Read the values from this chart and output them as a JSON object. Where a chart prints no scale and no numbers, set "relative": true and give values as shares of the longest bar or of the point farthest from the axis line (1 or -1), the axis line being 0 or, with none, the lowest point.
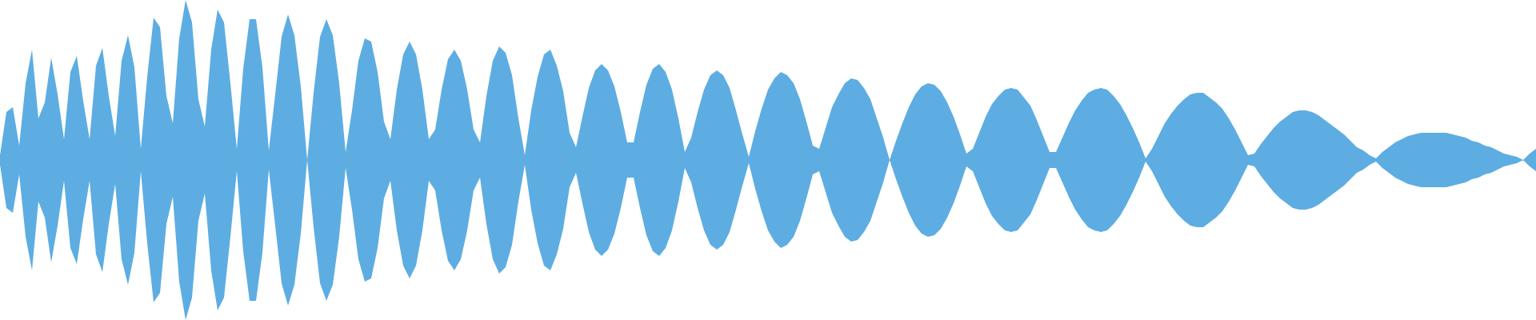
{
  "chart_data": {
    "type": "area",
    "relative": true,
    "categories": [
      null,
      null,
      null,
      null,
      null,
      null,
      null,
      null,
      null,
      null,
      null,
      null,
      null,
      null,
      null,
      null,
      null,
      null,
      null,
      null,
      null,
      null,
      null,
      null,
      null,
      null,
      null,
      null,
      null,
      null,
      null,
      null,
      null,
      null,
      null,
      null,
      null,
      null,
      null,
      null,
      null,
      null,
      null,
      null,
      null,
      null,
      null,
      null,
      null,
      null,
      null,
      null,
      null,
      null,
      null,
      null,
      null,
      null,
      null,
      null,
      null,
      null,
      null,
      null,
      null,
      null,
      null,
      null,
      null,
      null,
      null,
      null,
      null,
      null,
      null,
      null,
      null,
      null,
      null,
      null,
      null,
      null,
      null,
      null,
      null,
      null,
      null,
      null,
      null,
      null,
      null,
      null,
      null,
      null,
      null,
      null,
      null,
      null,
      null,
      null,
      null,
      null,
      null,
      null,
      null,
      null,
      null,
      null,
      null,
      null,
      null,
      null,
      null,
      null,
      null,
      null,
      null,
      null,
      null,
      null,
      null,
      null,
      null,
      null,
      null,
      null,
      null,
      null,
      null,
      null,
      null,
      null,
      null,
      null,
      null,
      null,
      null,
      null,
      null,
      null,
      null,
      null,
      null,
      null,
      null,
      null,
      null,
      null,
      null,
      null,
      null,
      null,
      null,
      null,
      null,
      null,
      null,
      null,
      null,
      null,
      null,
      null,
      null,
      null,
      null,
      null,
      null,
      null,
      null,
      null,
      null,
      null,
      null,
      null,
      null,
      null,
      null,
      null,
      null,
      null,
      null,
      null,
      null,
      null,
      null,
      null,
      null,
      null,
      null,
      null,
      null,
      null,
      null,
      null,
      null,
      null,
      null,
      null,
      null,
      null,
      null,
      null,
      null,
      null,
      null,
      null,
      null,
      null,
      null,
      null,
      null,
      null,
      null,
      null,
      null,
      null,
      null,
      null,
      null,
      null,
      null,
      null,
      null,
      null,
      null,
      null,
      null,
      null,
      null,
      null,
      null,
      null,
      null,
      null,
      null,
      null,
      null,
      null,
      null,
      null,
      null
    ],
    "series": [
      {
        "color": "#5dade2",
        "values": [
          0.03,
          0.3,
          0.33,
          0.09,
          0.48,
          0.69,
          0.26,
          0.36,
          0.64,
          0.41,
          0.13,
          0.55,
          0.65,
          0.37,
          0.13,
          0.59,
          0.7,
          0.4,
          0.15,
          0.62,
          0.78,
          0.58,
          0.07,
          0.52,
          0.89,
          0.83,
          0.4,
          0.23,
          0.76,
          1.0,
          0.86,
          0.38,
          0.21,
          0.69,
          0.94,
          0.86,
          0.48,
          0.07,
          0.57,
          0.88,
          0.88,
          0.58,
          0.06,
          0.41,
          0.77,
          0.91,
          0.78,
          0.46,
          0,
          0.42,
          0.77,
          0.88,
          0.78,
          0.48,
          0.05,
          0.31,
          0.62,
          0.76,
          0.74,
          0.55,
          0.24,
          0.13,
          0.44,
          0.66,
          0.74,
          0.66,
          0.44,
          0.13,
          0.19,
          0.44,
          0.63,
          0.69,
          0.62,
          0.44,
          0.19,
          0.11,
          0.4,
          0.62,
          0.71,
          0.67,
          0.53,
          0.26,
          0.03,
          0.31,
          0.52,
          0.66,
          0.69,
          0.59,
          0.43,
          0.17,
          0.08,
          0.27,
          0.45,
          0.56,
          0.6,
          0.56,
          0.46,
          0.3,
          0.11,
          0.11,
          0.3,
          0.47,
          0.57,
          0.6,
          0.55,
          0.44,
          0.26,
          0.05,
          0.14,
          0.3,
          0.44,
          0.53,
          0.56,
          0.53,
          0.45,
          0.31,
          0.16,
          0.02,
          0.18,
          0.32,
          0.44,
          0.51,
          0.55,
          0.53,
          0.48,
          0.38,
          0.24,
          0.09,
          0.07,
          0.2,
          0.33,
          0.41,
          0.48,
          0.51,
          0.5,
          0.45,
          0.38,
          0.26,
          0.14,
          0,
          0.12,
          0.23,
          0.33,
          0.41,
          0.46,
          0.48,
          0.47,
          0.43,
          0.36,
          0.27,
          0.16,
          0.04,
          0.07,
          0.17,
          0.27,
          0.35,
          0.4,
          0.44,
          0.45,
          0.44,
          0.39,
          0.34,
          0.25,
          0.15,
          0.05,
          0.05,
          0.14,
          0.23,
          0.31,
          0.37,
          0.42,
          0.44,
          0.45,
          0.44,
          0.4,
          0.35,
          0.28,
          0.2,
          0.11,
          0.01,
          0.07,
          0.15,
          0.23,
          0.29,
          0.34,
          0.38,
          0.41,
          0.42,
          0.42,
          0.39,
          0.36,
          0.32,
          0.26,
          0.19,
          0.11,
          0.03,
          0.04,
          0.1,
          0.15,
          0.2,
          0.24,
          0.27,
          0.3,
          0.31,
          0.31,
          0.3,
          0.28,
          0.25,
          0.22,
          0.19,
          0.16,
          0.12,
          0.08,
          0.06,
          0.03,
          0.01,
          0.05,
          0.08,
          0.11,
          0.13,
          0.15,
          0.16,
          0.17,
          0.17,
          0.17,
          0.17,
          0.17,
          0.16,
          0.15,
          0.14,
          0.12,
          0.11,
          0.09,
          0.08,
          0.06,
          0.04,
          0.03,
          0.02,
          0,
          0.04,
          0.07
        ]
      },
      {
        "color": "#5dade2",
        "values": [
          -0.03,
          -0.3,
          -0.33,
          -0.09,
          -0.48,
          -0.69,
          -0.26,
          -0.36,
          -0.64,
          -0.41,
          -0.13,
          -0.55,
          -0.65,
          -0.37,
          -0.13,
          -0.59,
          -0.7,
          -0.4,
          -0.15,
          -0.62,
          -0.78,
          -0.58,
          -0.07,
          -0.52,
          -0.89,
          -0.83,
          -0.4,
          -0.23,
          -0.76,
          -1.0,
          -0.86,
          -0.38,
          -0.21,
          -0.69,
          -0.94,
          -0.86,
          -0.48,
          -0.07,
          -0.57,
          -0.88,
          -0.88,
          -0.58,
          -0.06,
          -0.41,
          -0.77,
          -0.91,
          -0.78,
          -0.46,
          0,
          -0.42,
          -0.77,
          -0.88,
          -0.78,
          -0.48,
          -0.05,
          -0.31,
          -0.62,
          -0.76,
          -0.74,
          -0.55,
          -0.24,
          -0.13,
          -0.44,
          -0.66,
          -0.74,
          -0.66,
          -0.44,
          -0.13,
          -0.19,
          -0.44,
          -0.63,
          -0.69,
          -0.62,
          -0.44,
          -0.19,
          -0.11,
          -0.4,
          -0.62,
          -0.71,
          -0.67,
          -0.53,
          -0.26,
          -0.03,
          -0.31,
          -0.52,
          -0.66,
          -0.69,
          -0.59,
          -0.43,
          -0.17,
          -0.08,
          -0.27,
          -0.45,
          -0.56,
          -0.6,
          -0.56,
          -0.46,
          -0.3,
          -0.11,
          -0.11,
          -0.3,
          -0.47,
          -0.57,
          -0.6,
          -0.55,
          -0.44,
          -0.26,
          -0.05,
          -0.14,
          -0.3,
          -0.44,
          -0.53,
          -0.56,
          -0.53,
          -0.45,
          -0.31,
          -0.16,
          -0.02,
          -0.18,
          -0.32,
          -0.44,
          -0.51,
          -0.55,
          -0.53,
          -0.48,
          -0.38,
          -0.24,
          -0.09,
          -0.07,
          -0.2,
          -0.33,
          -0.41,
          -0.48,
          -0.51,
          -0.5,
          -0.45,
          -0.38,
          -0.26,
          -0.14,
          0,
          -0.12,
          -0.23,
          -0.33,
          -0.41,
          -0.46,
          -0.48,
          -0.47,
          -0.43,
          -0.36,
          -0.27,
          -0.16,
          -0.04,
          -0.07,
          -0.17,
          -0.27,
          -0.35,
          -0.4,
          -0.44,
          -0.45,
          -0.44,
          -0.39,
          -0.34,
          -0.25,
          -0.15,
          -0.05,
          -0.05,
          -0.14,
          -0.23,
          -0.31,
          -0.37,
          -0.42,
          -0.44,
          -0.45,
          -0.44,
          -0.4,
          -0.35,
          -0.28,
          -0.2,
          -0.11,
          -0.01,
          -0.07,
          -0.15,
          -0.23,
          -0.29,
          -0.34,
          -0.38,
          -0.41,
          -0.42,
          -0.42,
          -0.39,
          -0.36,
          -0.32,
          -0.26,
          -0.19,
          -0.11,
          -0.03,
          -0.04,
          -0.1,
          -0.15,
          -0.2,
          -0.24,
          -0.27,
          -0.3,
          -0.31,
          -0.31,
          -0.3,
          -0.28,
          -0.25,
          -0.22,
          -0.19,
          -0.16,
          -0.12,
          -0.08,
          -0.06,
          -0.03,
          -0.01,
          -0.05,
          -0.08,
          -0.11,
          -0.13,
          -0.15,
          -0.16,
          -0.17,
          -0.17,
          -0.17,
          -0.17,
          -0.17,
          -0.16,
          -0.15,
          -0.14,
          -0.12,
          -0.11,
          -0.09,
          -0.08,
          -0.06,
          -0.04,
          -0.03,
          -0.02,
          0,
          -0.04,
          -0.07
        ]
      }
    ]
  }
}
